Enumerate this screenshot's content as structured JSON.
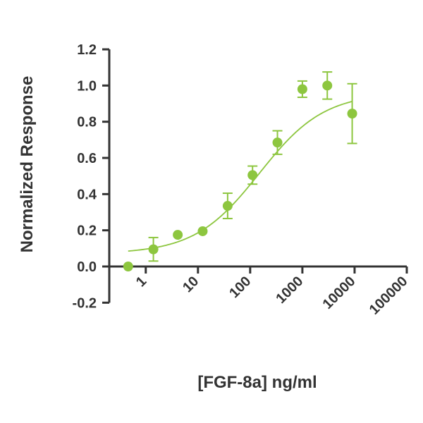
{
  "chart_data": {
    "type": "scatter",
    "title": "",
    "xlabel": "[FGF-8a] ng/ml",
    "ylabel": "Normalized Response",
    "x_scale": "log",
    "xlim": [
      0.2,
      100000
    ],
    "ylim": [
      -0.2,
      1.2
    ],
    "x_tick_values": [
      1,
      10,
      100,
      1000,
      10000,
      100000
    ],
    "x_tick_labels": [
      "1",
      "10",
      "100",
      "1000",
      "10000",
      "100000"
    ],
    "y_tick_values": [
      -0.2,
      0.0,
      0.2,
      0.4,
      0.6,
      0.8,
      1.0,
      1.2
    ],
    "y_tick_labels": [
      "-0.2",
      "0.0",
      "0.2",
      "0.4",
      "0.6",
      "0.8",
      "1.0",
      "1.2"
    ],
    "grid": false,
    "color": "#8dc63f",
    "points": [
      {
        "x": 0.46,
        "y": 0.0,
        "err": 0
      },
      {
        "x": 1.4,
        "y": 0.095,
        "err": 0.065
      },
      {
        "x": 4.1,
        "y": 0.175,
        "err": 0
      },
      {
        "x": 12.3,
        "y": 0.195,
        "err": 0
      },
      {
        "x": 37,
        "y": 0.335,
        "err": 0.07
      },
      {
        "x": 111,
        "y": 0.505,
        "err": 0.05
      },
      {
        "x": 333,
        "y": 0.685,
        "err": 0.065
      },
      {
        "x": 1000,
        "y": 0.98,
        "err": 0.045
      },
      {
        "x": 3000,
        "y": 1.0,
        "err": 0.075
      },
      {
        "x": 9000,
        "y": 0.845,
        "err": 0.165
      }
    ],
    "fit_curve": {
      "type": "4PL",
      "bottom": 0.07,
      "top": 0.96,
      "ec50": 150,
      "hill": 0.7,
      "x_range": [
        0.46,
        9000
      ]
    }
  }
}
